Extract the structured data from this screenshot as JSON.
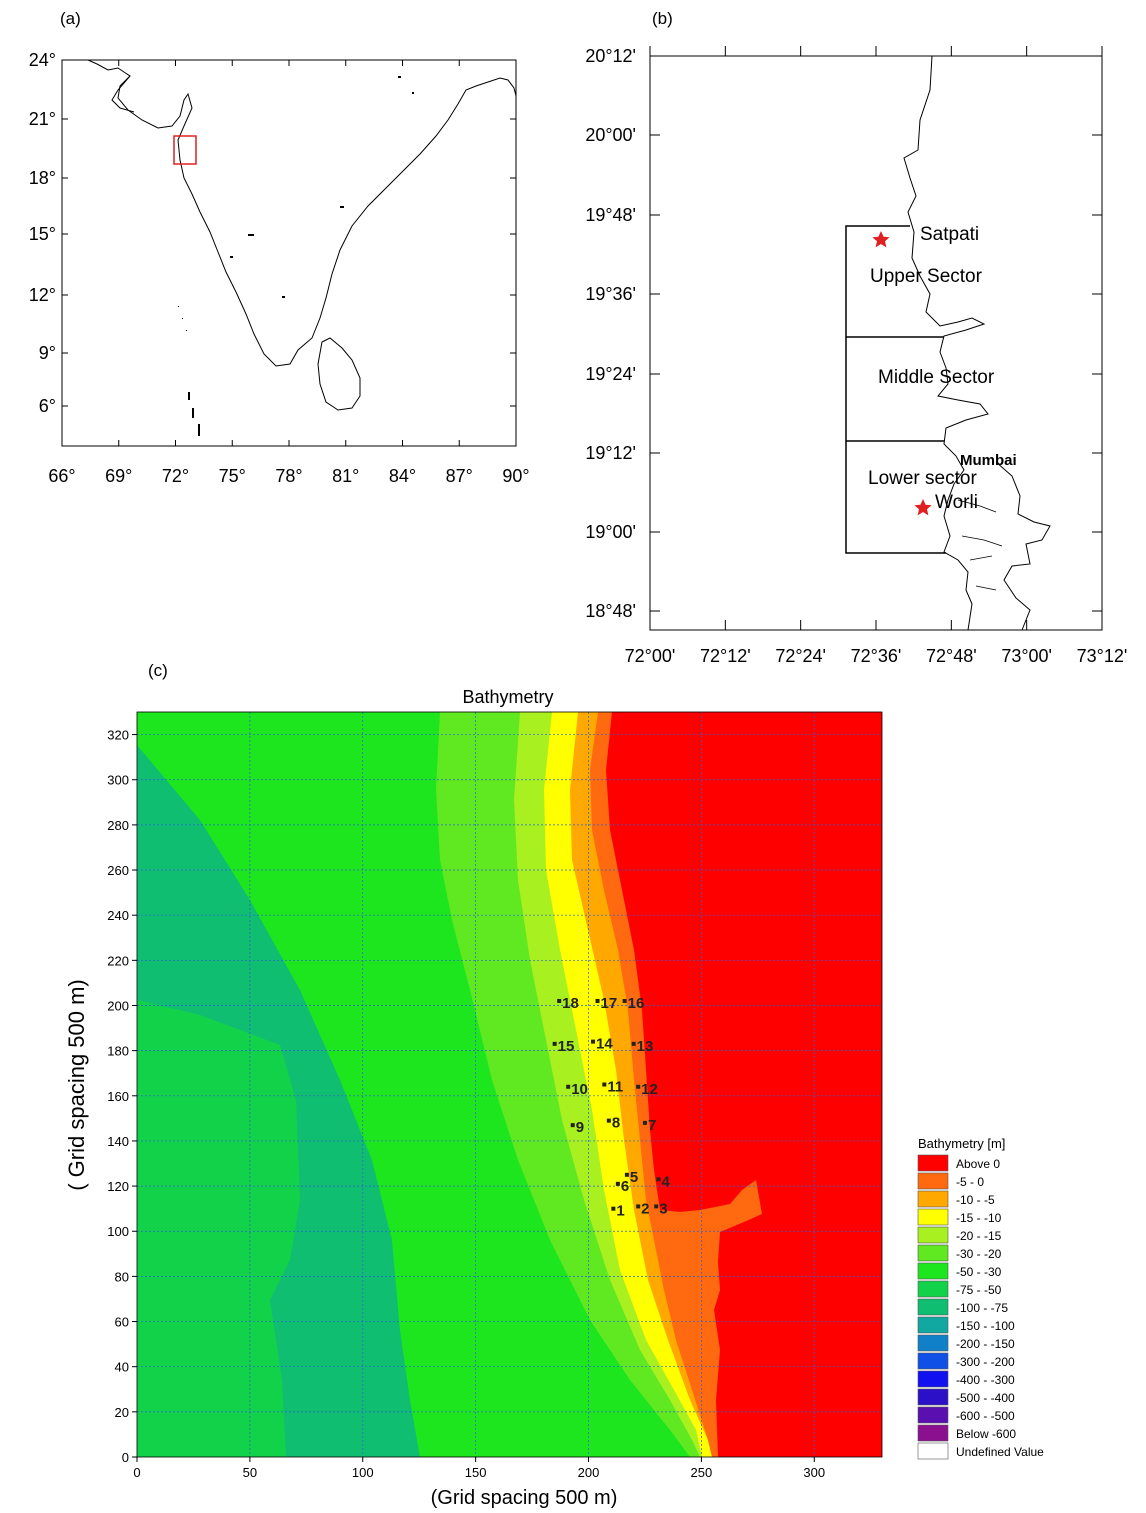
{
  "panel_a": {
    "label": "(a)",
    "lat_ticks": [
      "24°",
      "21°",
      "18°",
      "15°",
      "12°",
      "9°",
      "6°"
    ],
    "lon_ticks": [
      "66°",
      "69°",
      "72°",
      "75°",
      "78°",
      "81°",
      "84°",
      "87°",
      "90°"
    ],
    "inset_box_color": "#e02020"
  },
  "panel_b": {
    "label": "(b)",
    "lat_ticks": [
      "20°12'",
      "20°00'",
      "19°48'",
      "19°36'",
      "19°24'",
      "19°12'",
      "19°00'",
      "18°48'"
    ],
    "lon_ticks": [
      "72°00'",
      "72°12'",
      "72°24'",
      "72°36'",
      "72°48'",
      "73°00'",
      "73°12'"
    ],
    "labels": {
      "satpati": "Satpati",
      "upper": "Upper Sector",
      "middle": "Middle Sector",
      "lower": "Lower sector",
      "mumbai": "Mumbai",
      "worli": "Worli"
    },
    "star_color": "#e02020"
  },
  "panel_c": {
    "label": "(c)"
  },
  "chart_data": {
    "type": "heatmap",
    "title": "Bathymetry",
    "xlabel": "(Grid spacing 500 m)",
    "ylabel": "( Grid spacing 500 m)",
    "xlim": [
      0,
      330
    ],
    "ylim": [
      0,
      330
    ],
    "x_ticks": [
      "0",
      "50",
      "100",
      "150",
      "200",
      "250",
      "300"
    ],
    "y_ticks": [
      "0",
      "20",
      "40",
      "60",
      "80",
      "100",
      "120",
      "140",
      "160",
      "180",
      "200",
      "220",
      "240",
      "260",
      "280",
      "300",
      "320"
    ],
    "grid": true,
    "stations": [
      {
        "id": "1",
        "x": 211,
        "y": 110
      },
      {
        "id": "2",
        "x": 222,
        "y": 111
      },
      {
        "id": "3",
        "x": 230,
        "y": 111
      },
      {
        "id": "4",
        "x": 231,
        "y": 123
      },
      {
        "id": "5",
        "x": 217,
        "y": 125
      },
      {
        "id": "6",
        "x": 213,
        "y": 121
      },
      {
        "id": "7",
        "x": 225,
        "y": 148
      },
      {
        "id": "8",
        "x": 209,
        "y": 149
      },
      {
        "id": "9",
        "x": 193,
        "y": 147
      },
      {
        "id": "10",
        "x": 191,
        "y": 164
      },
      {
        "id": "11",
        "x": 207,
        "y": 165
      },
      {
        "id": "12",
        "x": 222,
        "y": 164
      },
      {
        "id": "13",
        "x": 220,
        "y": 183
      },
      {
        "id": "14",
        "x": 202,
        "y": 184
      },
      {
        "id": "15",
        "x": 185,
        "y": 183
      },
      {
        "id": "16",
        "x": 216,
        "y": 202
      },
      {
        "id": "17",
        "x": 204,
        "y": 202
      },
      {
        "id": "18",
        "x": 187,
        "y": 202
      }
    ],
    "legend": {
      "title": "Bathymetry [m]",
      "placement": "right",
      "entries": [
        {
          "label": "Above   0",
          "color": "#ff0000"
        },
        {
          "label": "-5 -   0",
          "color": "#ff6a10"
        },
        {
          "label": "-10 -   -5",
          "color": "#ffa800"
        },
        {
          "label": "-15 -  -10",
          "color": "#ffff00"
        },
        {
          "label": "-20 -  -15",
          "color": "#a8f020"
        },
        {
          "label": "-30 -  -20",
          "color": "#60e820"
        },
        {
          "label": "-50 -  -30",
          "color": "#1ee61e"
        },
        {
          "label": "-75 -  -50",
          "color": "#12d24a"
        },
        {
          "label": "-100 -  -75",
          "color": "#10be72"
        },
        {
          "label": "-150 - -100",
          "color": "#10a8a0"
        },
        {
          "label": "-200 - -150",
          "color": "#1080c8"
        },
        {
          "label": "-300 - -200",
          "color": "#1050e6"
        },
        {
          "label": "-400 - -300",
          "color": "#1010f0"
        },
        {
          "label": "-500 - -400",
          "color": "#2c10c8"
        },
        {
          "label": "-600 - -500",
          "color": "#5a10b0"
        },
        {
          "label": "Below -600",
          "color": "#8a1090"
        },
        {
          "label": "Undefined Value",
          "color": "#ffffff"
        }
      ]
    }
  }
}
